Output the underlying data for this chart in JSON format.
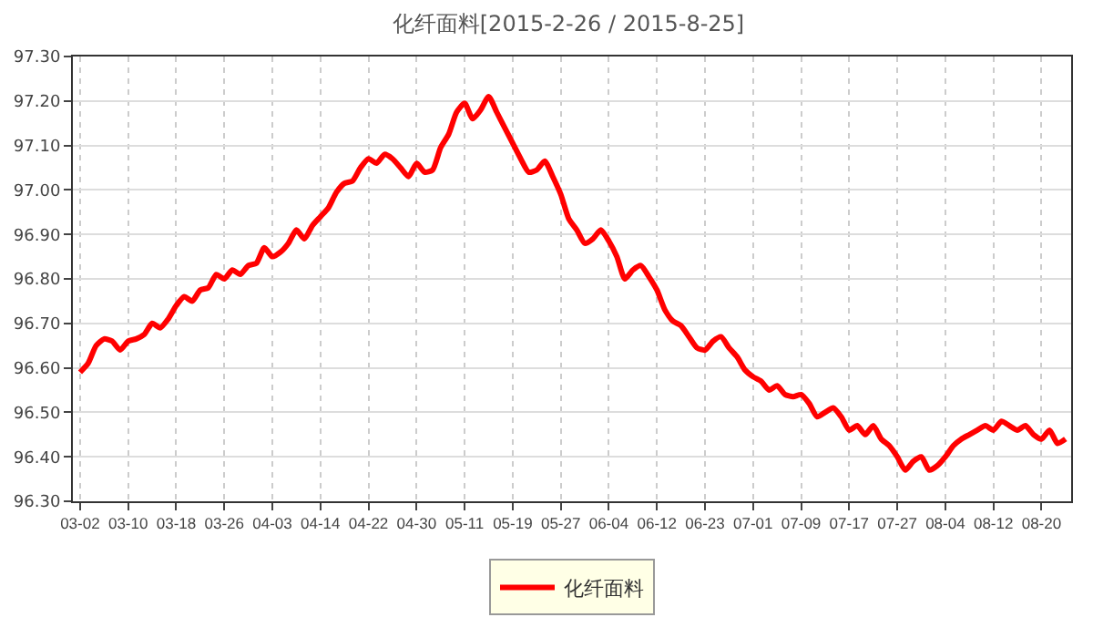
{
  "chart_data": {
    "type": "line",
    "title": "化纤面料[2015-2-26 / 2015-8-25]",
    "categories": [
      "03-02",
      null,
      null,
      null,
      null,
      null,
      "03-10",
      null,
      null,
      null,
      null,
      null,
      "03-18",
      null,
      null,
      null,
      null,
      null,
      "03-26",
      null,
      null,
      null,
      null,
      null,
      "04-03",
      null,
      null,
      null,
      null,
      null,
      "04-14",
      null,
      null,
      null,
      null,
      null,
      "04-22",
      null,
      null,
      null,
      null,
      null,
      "04-30",
      null,
      null,
      null,
      null,
      null,
      "05-11",
      null,
      null,
      null,
      null,
      null,
      "05-19",
      null,
      null,
      null,
      null,
      null,
      "05-27",
      null,
      null,
      null,
      null,
      null,
      "06-04",
      null,
      null,
      null,
      null,
      null,
      "06-12",
      null,
      null,
      null,
      null,
      null,
      "06-23",
      null,
      null,
      null,
      null,
      null,
      "07-01",
      null,
      null,
      null,
      null,
      null,
      "07-09",
      null,
      null,
      null,
      null,
      null,
      "07-17",
      null,
      null,
      null,
      null,
      null,
      "07-27",
      null,
      null,
      null,
      null,
      null,
      "08-04",
      null,
      null,
      null,
      null,
      null,
      "08-12",
      null,
      null,
      null,
      null,
      null,
      "08-20",
      null,
      null,
      null
    ],
    "series": [
      {
        "name": "化纤面料",
        "color": "#ff0000",
        "values": [
          96.59,
          96.61,
          96.65,
          96.665,
          96.66,
          96.64,
          96.66,
          96.665,
          96.675,
          96.7,
          96.69,
          96.71,
          96.74,
          96.76,
          96.75,
          96.775,
          96.78,
          96.81,
          96.8,
          96.82,
          96.81,
          96.83,
          96.835,
          96.87,
          96.85,
          96.86,
          96.88,
          96.91,
          96.89,
          96.92,
          96.94,
          96.96,
          96.995,
          97.015,
          97.02,
          97.05,
          97.07,
          97.06,
          97.08,
          97.07,
          97.05,
          97.03,
          97.06,
          97.04,
          97.045,
          97.095,
          97.125,
          97.175,
          97.195,
          97.16,
          97.18,
          97.21,
          97.175,
          97.14,
          97.105,
          97.07,
          97.04,
          97.045,
          97.065,
          97.03,
          96.99,
          96.935,
          96.91,
          96.88,
          96.89,
          96.91,
          96.885,
          96.85,
          96.8,
          96.82,
          96.83,
          96.805,
          96.775,
          96.73,
          96.705,
          96.695,
          96.67,
          96.645,
          96.64,
          96.66,
          96.67,
          96.645,
          96.625,
          96.595,
          96.58,
          96.57,
          96.55,
          96.56,
          96.54,
          96.535,
          96.54,
          96.52,
          96.49,
          96.5,
          96.51,
          96.49,
          96.46,
          96.47,
          96.45,
          96.47,
          96.44,
          96.425,
          96.4,
          96.37,
          96.39,
          96.4,
          96.37,
          96.38,
          96.4,
          96.425,
          96.44,
          96.45,
          96.46,
          96.47,
          96.46,
          96.48,
          96.47,
          96.46,
          96.47,
          96.45,
          96.44,
          96.46,
          96.43,
          96.44
        ]
      }
    ],
    "ylim": [
      96.3,
      97.3
    ],
    "yticks": [
      {
        "value": 96.3,
        "label": "96.30"
      },
      {
        "value": 96.4,
        "label": "96.40"
      },
      {
        "value": 96.5,
        "label": "96.50"
      },
      {
        "value": 96.6,
        "label": "96.60"
      },
      {
        "value": 96.7,
        "label": "96.70"
      },
      {
        "value": 96.8,
        "label": "96.80"
      },
      {
        "value": 96.9,
        "label": "96.90"
      },
      {
        "value": 97.0,
        "label": "97.00"
      },
      {
        "value": 97.1,
        "label": "97.10"
      },
      {
        "value": 97.2,
        "label": "97.20"
      },
      {
        "value": 97.3,
        "label": "97.30"
      }
    ],
    "grid": true,
    "legend": "bottom",
    "marker": "none",
    "line_style": "solid"
  }
}
